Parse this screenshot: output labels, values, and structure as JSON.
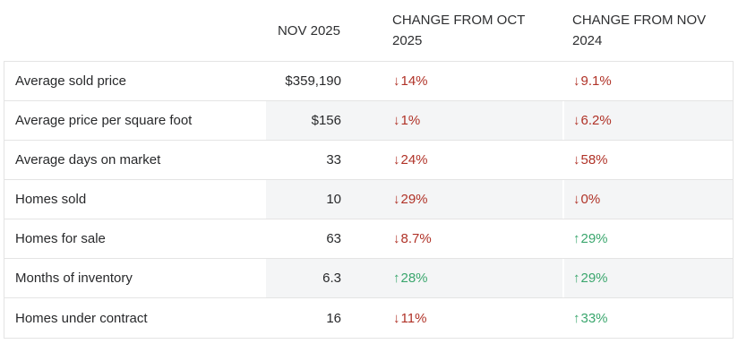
{
  "table": {
    "columns": [
      {
        "label": ""
      },
      {
        "label": "NOV 2025"
      },
      {
        "label": "CHANGE FROM OCT 2025"
      },
      {
        "label": "CHANGE FROM NOV 2024"
      }
    ],
    "rows": [
      {
        "label": "Average sold price",
        "value": "$359,190",
        "change_mom": {
          "dir": "down",
          "text": "14%"
        },
        "change_yoy": {
          "dir": "down",
          "text": "9.1%"
        }
      },
      {
        "label": "Average price per square foot",
        "value": "$156",
        "change_mom": {
          "dir": "down",
          "text": "1%"
        },
        "change_yoy": {
          "dir": "down",
          "text": "6.2%"
        }
      },
      {
        "label": "Average days on market",
        "value": "33",
        "change_mom": {
          "dir": "down",
          "text": "24%"
        },
        "change_yoy": {
          "dir": "down",
          "text": "58%"
        }
      },
      {
        "label": "Homes sold",
        "value": "10",
        "change_mom": {
          "dir": "down",
          "text": "29%"
        },
        "change_yoy": {
          "dir": "down",
          "text": "0%"
        }
      },
      {
        "label": "Homes for sale",
        "value": "63",
        "change_mom": {
          "dir": "down",
          "text": "8.7%"
        },
        "change_yoy": {
          "dir": "up",
          "text": "29%"
        }
      },
      {
        "label": "Months of inventory",
        "value": "6.3",
        "change_mom": {
          "dir": "up",
          "text": "28%"
        },
        "change_yoy": {
          "dir": "up",
          "text": "29%"
        }
      },
      {
        "label": "Homes under contract",
        "value": "16",
        "change_mom": {
          "dir": "down",
          "text": "11%"
        },
        "change_yoy": {
          "dir": "up",
          "text": "33%"
        }
      }
    ]
  },
  "icons": {
    "down_arrow": "↓",
    "up_arrow": "↑"
  },
  "colors": {
    "down": "#b03227",
    "up": "#3aa66d",
    "stripe": "#f4f5f6",
    "border": "#e4e4e4",
    "text": "#28292b",
    "header_text": "#2e2f31"
  }
}
